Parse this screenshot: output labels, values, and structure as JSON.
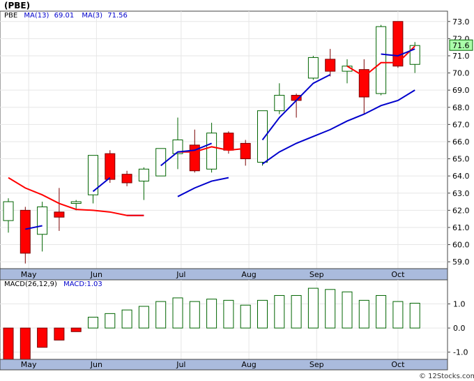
{
  "title": "(PBE)",
  "footer": "© 12Stocks.com",
  "colors": {
    "up_fill": "#ffffff",
    "up_stroke": "#006400",
    "down_fill": "#ff0000",
    "down_stroke": "#7a0000",
    "ma_fast": "#ff0000",
    "ma_slow": "#0000cc",
    "macd_bar": "#006400",
    "axis_band": "#aabbdd",
    "last_bg": "#aaffaa"
  },
  "chart_data": [
    {
      "type": "candlestick",
      "legend": {
        "symbol": "PBE",
        "ma13_label": "MA(13)",
        "ma13_value": "69.01",
        "ma3_label": "MA(3)",
        "ma3_value": "71.56"
      },
      "last_price_label": "71.6",
      "ylim": [
        58.6,
        73.6
      ],
      "yticks": [
        59.0,
        60.0,
        61.0,
        62.0,
        63.0,
        64.0,
        65.0,
        66.0,
        67.0,
        68.0,
        69.0,
        70.0,
        71.0,
        72.0,
        73.0
      ],
      "ytick_labels": [
        "59.0",
        "60.0",
        "61.0",
        "62.0",
        "63.0",
        "64.0",
        "65.0",
        "66.0",
        "67.0",
        "68.0",
        "69.0",
        "70.0",
        "71.0",
        "72.0",
        "73.0"
      ],
      "x_labels": [
        "May",
        "Jun",
        "Jul",
        "Aug",
        "Sep",
        "Oct"
      ],
      "x_label_index": [
        1.2,
        5.2,
        10.2,
        14.2,
        18.2,
        23.0
      ],
      "bars": [
        {
          "o": 61.4,
          "c": 62.5,
          "h": 62.7,
          "l": 60.7
        },
        {
          "o": 62.0,
          "c": 59.5,
          "h": 62.2,
          "l": 58.9
        },
        {
          "o": 60.6,
          "c": 62.2,
          "h": 62.5,
          "l": 59.6
        },
        {
          "o": 61.9,
          "c": 61.6,
          "h": 63.3,
          "l": 60.8
        },
        {
          "o": 62.4,
          "c": 62.5,
          "h": 62.6,
          "l": 62.0
        },
        {
          "o": 62.9,
          "c": 65.2,
          "h": 65.2,
          "l": 62.4
        },
        {
          "o": 65.3,
          "c": 63.8,
          "h": 65.5,
          "l": 63.6
        },
        {
          "o": 64.1,
          "c": 63.6,
          "h": 64.3,
          "l": 63.4
        },
        {
          "o": 63.7,
          "c": 64.4,
          "h": 64.5,
          "l": 62.6
        },
        {
          "o": 64.0,
          "c": 65.6,
          "h": 65.6,
          "l": 64.0
        },
        {
          "o": 65.3,
          "c": 66.1,
          "h": 67.4,
          "l": 64.4
        },
        {
          "o": 65.8,
          "c": 64.3,
          "h": 66.7,
          "l": 64.2
        },
        {
          "o": 64.4,
          "c": 66.5,
          "h": 67.1,
          "l": 64.2
        },
        {
          "o": 66.5,
          "c": 65.5,
          "h": 66.6,
          "l": 65.3
        },
        {
          "o": 65.9,
          "c": 65.0,
          "h": 66.1,
          "l": 64.6
        },
        {
          "o": 64.8,
          "c": 67.8,
          "h": 67.8,
          "l": 64.6
        },
        {
          "o": 67.8,
          "c": 68.7,
          "h": 69.4,
          "l": 67.6
        },
        {
          "o": 68.7,
          "c": 68.4,
          "h": 68.8,
          "l": 67.4
        },
        {
          "o": 69.7,
          "c": 70.9,
          "h": 71.0,
          "l": 69.6
        },
        {
          "o": 70.8,
          "c": 70.1,
          "h": 71.4,
          "l": 69.8
        },
        {
          "o": 70.1,
          "c": 70.4,
          "h": 70.8,
          "l": 69.4
        },
        {
          "o": 70.2,
          "c": 68.6,
          "h": 70.8,
          "l": 67.6
        },
        {
          "o": 68.8,
          "c": 72.7,
          "h": 72.8,
          "l": 68.7
        },
        {
          "o": 73.0,
          "c": 70.4,
          "h": 73.0,
          "l": 70.3
        },
        {
          "o": 70.5,
          "c": 71.6,
          "h": 71.8,
          "l": 70.0
        }
      ],
      "ma3": [
        63.9,
        63.3,
        62.9,
        62.4,
        62.05,
        62.0,
        61.9,
        61.7,
        61.7,
        null,
        65.4,
        65.4,
        65.7,
        65.5,
        65.6,
        null,
        null,
        null,
        null,
        null,
        70.4,
        69.8,
        70.6,
        70.6,
        71.56
      ],
      "ma13": [
        null,
        60.9,
        61.1,
        null,
        null,
        63.1,
        63.9,
        null,
        null,
        64.6,
        65.4,
        65.5,
        65.9,
        null,
        null,
        66.1,
        67.4,
        68.4,
        69.4,
        69.9,
        null,
        null,
        71.1,
        71.0,
        71.4
      ],
      "ma13_long": [
        null,
        null,
        null,
        null,
        null,
        null,
        null,
        61.7,
        61.7,
        null,
        62.8,
        63.3,
        63.7,
        63.9,
        null,
        64.7,
        65.4,
        65.9,
        66.3,
        66.7,
        67.2,
        67.6,
        68.1,
        68.4,
        69.0
      ],
      "ma3_marks": [
        null,
        null,
        null,
        null,
        null,
        null,
        null,
        null,
        null,
        null,
        null,
        null,
        null,
        null,
        null,
        null,
        null,
        null,
        null,
        null,
        null,
        null,
        null,
        null,
        null
      ]
    },
    {
      "type": "bar",
      "legend": {
        "label": "MACD(26,12,9)",
        "value_label": "MACD:1.03"
      },
      "ylim": [
        -1.3,
        2.0
      ],
      "yticks": [
        -1.0,
        0.0,
        1.0
      ],
      "ytick_labels": [
        "-1.0",
        "0.0",
        "1.0"
      ],
      "values": [
        -1.3,
        -1.3,
        -0.8,
        -0.5,
        -0.15,
        0.45,
        0.6,
        0.75,
        0.9,
        1.1,
        1.25,
        1.1,
        1.2,
        1.15,
        0.95,
        1.15,
        1.35,
        1.35,
        1.65,
        1.6,
        1.5,
        1.15,
        1.35,
        1.1,
        1.03
      ]
    }
  ]
}
